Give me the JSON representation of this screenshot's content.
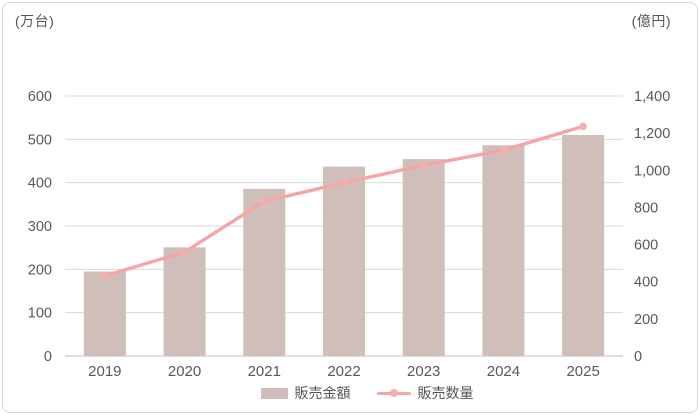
{
  "chart_data": {
    "type": "combo-bar-line",
    "categories": [
      "2019",
      "2020",
      "2021",
      "2022",
      "2023",
      "2024",
      "2025"
    ],
    "series": [
      {
        "name": "販売金額",
        "type": "bar",
        "axis": "right",
        "unit": "億円",
        "color": "#CFBEB9",
        "values": [
          455,
          585,
          900,
          1020,
          1060,
          1135,
          1190
        ]
      },
      {
        "name": "販売数量",
        "type": "line",
        "axis": "left",
        "unit": "万台",
        "color": "#F4A6A6",
        "marker_color": "#F6ADAD",
        "values": [
          185,
          240,
          357,
          400,
          440,
          475,
          530
        ]
      }
    ],
    "left_axis": {
      "title": "(万台)",
      "min": 0,
      "max": 600,
      "tick_labels": [
        "0",
        "100",
        "200",
        "300",
        "400",
        "500",
        "600"
      ]
    },
    "right_axis": {
      "title": "(億円)",
      "min": 0,
      "max": 1400,
      "tick_labels": [
        "0",
        "200",
        "400",
        "600",
        "800",
        "1,000",
        "1,200",
        "1,400"
      ]
    },
    "grid": true,
    "legend_position": "bottom"
  },
  "colors": {
    "gridline": "#d9d9d9",
    "axis_line": "#bfbfbf",
    "tick_text": "#595959",
    "frame_border": "#d8d8d8"
  }
}
